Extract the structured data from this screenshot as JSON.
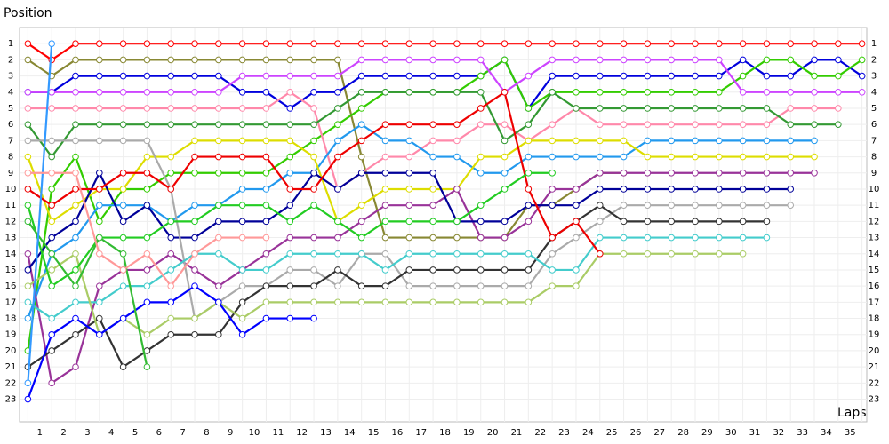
{
  "chart_data": {
    "type": "line",
    "y_label": "Position",
    "x_label": "Laps",
    "x": [
      0,
      1,
      2,
      3,
      4,
      5,
      6,
      7,
      8,
      9,
      10,
      11,
      12,
      13,
      14,
      15,
      16,
      17,
      18,
      19,
      20,
      21,
      22,
      23,
      24,
      25,
      26,
      27,
      28,
      29,
      30,
      31,
      32,
      33,
      34,
      35
    ],
    "xticks": [
      1,
      2,
      3,
      4,
      5,
      6,
      7,
      8,
      9,
      10,
      11,
      12,
      13,
      14,
      15,
      16,
      17,
      18,
      19,
      20,
      21,
      22,
      23,
      24,
      25,
      26,
      27,
      28,
      29,
      30,
      31,
      32,
      33,
      34,
      35
    ],
    "xlim": [
      -0.35,
      35.2
    ],
    "ylim": [
      0,
      24.4
    ],
    "yticks": [
      1,
      2,
      3,
      4,
      5,
      6,
      7,
      8,
      9,
      10,
      11,
      12,
      13,
      14,
      15,
      16,
      17,
      18,
      19,
      20,
      21,
      22,
      23
    ],
    "reverse_y": true,
    "grid": true,
    "series": [
      {
        "color": "#ff0000",
        "values": [
          1,
          2,
          1,
          1,
          1,
          1,
          1,
          1,
          1,
          1,
          1,
          1,
          1,
          1,
          1,
          1,
          1,
          1,
          1,
          1,
          1,
          1,
          1,
          1,
          1,
          1,
          1,
          1,
          1,
          1,
          1,
          1,
          1,
          1,
          1,
          1
        ]
      },
      {
        "color": "#888833",
        "values": [
          2,
          3,
          2,
          2,
          2,
          2,
          2,
          2,
          2,
          2,
          2,
          2,
          2,
          2,
          8,
          13,
          13,
          13,
          13,
          13,
          13,
          11,
          11,
          10,
          9,
          9,
          null,
          null,
          null,
          null,
          null,
          null,
          null,
          null,
          null,
          null
        ]
      },
      {
        "color": "#0000dd",
        "values": [
          4,
          4,
          3,
          3,
          3,
          3,
          3,
          3,
          3,
          4,
          4,
          5,
          4,
          4,
          3,
          3,
          3,
          3,
          3,
          3,
          2,
          5,
          3,
          3,
          3,
          3,
          3,
          3,
          3,
          3,
          2,
          3,
          3,
          2,
          2,
          3
        ]
      },
      {
        "color": "#33cc00",
        "values": [
          20,
          10,
          8,
          12,
          10,
          10,
          9,
          9,
          9,
          9,
          9,
          8,
          7,
          6,
          5,
          4,
          4,
          4,
          4,
          3,
          2,
          5,
          4,
          4,
          4,
          4,
          4,
          4,
          4,
          4,
          3,
          2,
          2,
          3,
          3,
          2
        ]
      },
      {
        "color": "#cc44ff",
        "values": [
          4,
          4,
          4,
          4,
          4,
          4,
          4,
          4,
          4,
          3,
          3,
          3,
          3,
          3,
          2,
          2,
          2,
          2,
          2,
          2,
          4,
          3,
          2,
          2,
          2,
          2,
          2,
          2,
          2,
          2,
          4,
          4,
          4,
          4,
          4,
          4
        ]
      },
      {
        "color": "#ff88aa",
        "values": [
          5,
          5,
          5,
          5,
          5,
          5,
          5,
          5,
          5,
          5,
          5,
          4,
          5,
          10,
          9,
          8,
          8,
          7,
          7,
          6,
          6,
          7,
          6,
          5,
          6,
          6,
          6,
          6,
          6,
          6,
          6,
          6,
          5,
          5,
          5,
          null
        ]
      },
      {
        "color": "#339933",
        "values": [
          6,
          8,
          6,
          6,
          6,
          6,
          6,
          6,
          6,
          6,
          6,
          6,
          6,
          5,
          4,
          4,
          4,
          4,
          4,
          4,
          7,
          6,
          4,
          5,
          5,
          5,
          5,
          5,
          5,
          5,
          5,
          5,
          6,
          6,
          6,
          null
        ]
      },
      {
        "color": "#2299ee",
        "values": [
          18,
          14,
          13,
          11,
          11,
          11,
          12,
          11,
          11,
          10,
          10,
          9,
          9,
          7,
          6,
          7,
          7,
          8,
          8,
          9,
          9,
          8,
          8,
          8,
          8,
          8,
          7,
          7,
          7,
          7,
          7,
          7,
          7,
          7,
          null,
          null
        ]
      },
      {
        "color": "#dddd00",
        "values": [
          8,
          12,
          11,
          10,
          10,
          8,
          8,
          7,
          7,
          7,
          7,
          7,
          8,
          12,
          11,
          10,
          10,
          10,
          10,
          8,
          8,
          7,
          7,
          7,
          7,
          7,
          8,
          8,
          8,
          8,
          8,
          8,
          8,
          8,
          null,
          null
        ]
      },
      {
        "color": "#993399",
        "values": [
          14,
          22,
          21,
          16,
          15,
          15,
          14,
          15,
          16,
          15,
          14,
          13,
          13,
          13,
          12,
          11,
          11,
          11,
          10,
          13,
          13,
          12,
          10,
          10,
          9,
          9,
          9,
          9,
          9,
          9,
          9,
          9,
          9,
          9,
          null,
          null
        ]
      },
      {
        "color": "#000099",
        "values": [
          15,
          13,
          12,
          9,
          12,
          11,
          13,
          13,
          12,
          12,
          12,
          11,
          9,
          10,
          9,
          9,
          9,
          9,
          12,
          12,
          12,
          11,
          11,
          11,
          10,
          10,
          10,
          10,
          10,
          10,
          10,
          10,
          10,
          null,
          null,
          null
        ]
      },
      {
        "color": "#aaaaaa",
        "values": [
          7,
          7,
          7,
          7,
          7,
          7,
          10,
          18,
          17,
          16,
          16,
          15,
          15,
          16,
          14,
          14,
          16,
          16,
          16,
          16,
          16,
          16,
          14,
          13,
          12,
          11,
          11,
          11,
          11,
          11,
          11,
          11,
          11,
          null,
          null,
          null
        ]
      },
      {
        "color": "#333333",
        "values": [
          21,
          20,
          19,
          18,
          21,
          20,
          19,
          19,
          19,
          17,
          16,
          16,
          16,
          15,
          16,
          16,
          15,
          15,
          15,
          15,
          15,
          15,
          13,
          12,
          11,
          12,
          12,
          12,
          12,
          12,
          12,
          12,
          null,
          null,
          null,
          null
        ]
      },
      {
        "color": "#44cccc",
        "values": [
          17,
          18,
          17,
          17,
          16,
          16,
          15,
          14,
          14,
          15,
          15,
          14,
          14,
          14,
          14,
          15,
          14,
          14,
          14,
          14,
          14,
          14,
          15,
          15,
          13,
          13,
          13,
          13,
          13,
          13,
          13,
          13,
          null,
          null,
          null,
          null
        ]
      },
      {
        "color": "#aacc66",
        "values": [
          16,
          15,
          14,
          19,
          18,
          19,
          18,
          18,
          17,
          18,
          17,
          17,
          17,
          17,
          17,
          17,
          17,
          17,
          17,
          17,
          17,
          17,
          16,
          16,
          14,
          14,
          14,
          14,
          14,
          14,
          14,
          null,
          null,
          null,
          null,
          null
        ]
      },
      {
        "color": "#ee0000",
        "values": [
          10,
          11,
          10,
          10,
          9,
          9,
          10,
          8,
          8,
          8,
          8,
          10,
          10,
          8,
          7,
          6,
          6,
          6,
          6,
          5,
          4,
          10,
          13,
          12,
          14,
          null,
          null,
          null,
          null,
          null,
          null,
          null,
          null,
          null,
          null,
          null
        ]
      },
      {
        "color": "#22cc22",
        "values": [
          11,
          16,
          15,
          13,
          13,
          13,
          12,
          12,
          11,
          11,
          11,
          12,
          11,
          12,
          13,
          12,
          12,
          12,
          12,
          11,
          10,
          9,
          9,
          null,
          null,
          null,
          null,
          null,
          null,
          null,
          null,
          null,
          null,
          null,
          null,
          null
        ]
      },
      {
        "color": "#0000ff",
        "values": [
          23,
          19,
          18,
          19,
          18,
          17,
          17,
          16,
          17,
          19,
          18,
          18,
          18,
          null,
          null,
          null,
          null,
          null,
          null,
          null,
          null,
          null,
          null,
          null,
          null,
          null,
          null,
          null,
          null,
          null,
          null,
          null,
          null,
          null,
          null,
          null
        ]
      },
      {
        "color": "#33bb33",
        "values": [
          12,
          14,
          16,
          13,
          14,
          21,
          null,
          null,
          null,
          null,
          null,
          null,
          null,
          null,
          null,
          null,
          null,
          null,
          null,
          null,
          null,
          null,
          null,
          null,
          null,
          null,
          null,
          null,
          null,
          null,
          null,
          null,
          null,
          null,
          null,
          null
        ]
      },
      {
        "color": "#3399ff",
        "values": [
          22,
          1,
          null,
          null,
          null,
          null,
          null,
          null,
          null,
          null,
          null,
          null,
          null,
          null,
          null,
          null,
          null,
          null,
          null,
          null,
          null,
          null,
          null,
          null,
          null,
          null,
          null,
          null,
          null,
          null,
          null,
          null,
          null,
          null,
          null,
          null
        ]
      },
      {
        "color": "#ff9999",
        "values": [
          9,
          9,
          9,
          14,
          15,
          14,
          16,
          14,
          13,
          13,
          13,
          null,
          null,
          null,
          null,
          null,
          null,
          null,
          null,
          null,
          null,
          null,
          null,
          null,
          null,
          null,
          null,
          null,
          null,
          null,
          null,
          null,
          null,
          null,
          null,
          null
        ]
      }
    ]
  }
}
